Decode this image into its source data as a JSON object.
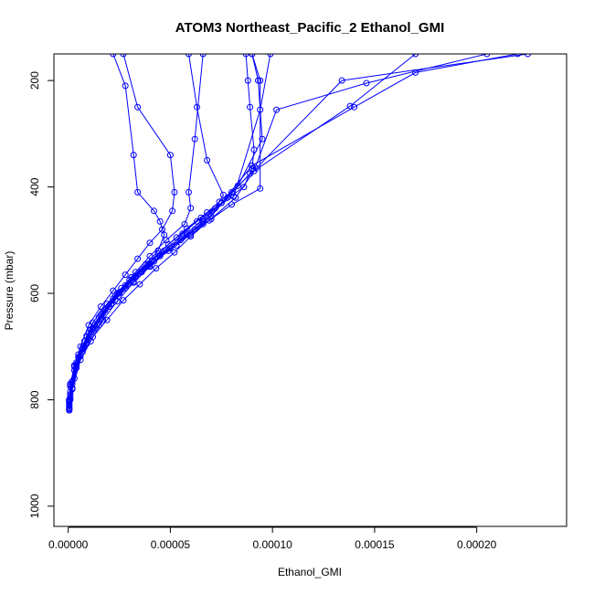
{
  "chart_data": {
    "type": "line",
    "title": "ATOM3 Northeast_Pacific_2 Ethanol_GMI",
    "xlabel": "Ethanol_GMI",
    "ylabel": "Pressure (mbar)",
    "xlim": [
      -7e-06,
      0.000244
    ],
    "ylim": [
      1038,
      150
    ],
    "y_reversed": true,
    "x_ticks": [
      "0.00000",
      "0.00005",
      "0.00010",
      "0.00015",
      "0.00020"
    ],
    "x_tick_values": [
      0,
      5e-05,
      0.0001,
      0.00015,
      0.0002
    ],
    "y_ticks": [
      "200",
      "400",
      "600",
      "800",
      "1000"
    ],
    "y_tick_values": [
      200,
      400,
      600,
      800,
      1000
    ],
    "color": "#0000ff",
    "marker": "open-circle",
    "series": [
      {
        "x": [
          5e-07,
          1e-06,
          3e-06,
          7e-06,
          1.2e-05,
          1.8e-05,
          2.5e-05,
          3.3e-05,
          4.2e-05,
          5.3e-05,
          6.2e-05,
          7e-05,
          8e-05,
          9.2e-05,
          0.000134,
          0.000225
        ],
        "y": [
          820,
          800,
          760,
          710,
          665,
          630,
          600,
          570,
          540,
          510,
          480,
          455,
          410,
          365,
          200,
          150
        ]
      },
      {
        "x": [
          5e-07,
          1e-06,
          4e-06,
          8e-06,
          1.3e-05,
          2e-05,
          2.8e-05,
          3.6e-05,
          4.5e-05,
          5.5e-05,
          6.6e-05,
          7.5e-05,
          9e-05,
          0.00014,
          0.00017,
          0.00022
        ],
        "y": [
          818,
          795,
          740,
          700,
          660,
          625,
          590,
          560,
          530,
          500,
          470,
          430,
          360,
          250,
          185,
          150
        ]
      },
      {
        "x": [
          5e-07,
          2e-06,
          5e-06,
          9e-06,
          1.5e-05,
          2.2e-05,
          3e-05,
          4e-05,
          5e-05,
          6e-05,
          7e-05,
          8.2e-05,
          9.1e-05,
          0.000102,
          0.000146,
          0.000205
        ],
        "y": [
          815,
          780,
          720,
          680,
          645,
          610,
          575,
          545,
          515,
          490,
          460,
          420,
          370,
          255,
          205,
          150
        ]
      },
      {
        "x": [
          5e-07,
          1e-06,
          3e-06,
          7e-06,
          1.1e-05,
          1.7e-05,
          2.4e-05,
          3.1e-05,
          3.9e-05,
          4.7e-05,
          5.6e-05,
          6.6e-05,
          7.8e-05,
          8.9e-05,
          0.000138,
          0.00017
        ],
        "y": [
          812,
          790,
          745,
          705,
          668,
          635,
          600,
          570,
          545,
          520,
          495,
          460,
          420,
          375,
          248,
          150
        ]
      },
      {
        "x": [
          5e-07,
          1e-06,
          4e-06,
          8e-06,
          1.2e-05,
          1.9e-05,
          2.6e-05,
          3.3e-05,
          4e-05,
          4.8e-05,
          5.7e-05,
          6e-05,
          5.9e-05,
          6.2e-05,
          6.6e-05
        ],
        "y": [
          805,
          770,
          730,
          690,
          655,
          620,
          590,
          560,
          530,
          500,
          470,
          440,
          410,
          310,
          150
        ]
      },
      {
        "x": [
          5e-07,
          2e-06,
          5e-06,
          1e-05,
          1.6e-05,
          2.3e-05,
          3.1e-05,
          3.8e-05,
          4.4e-05,
          4.7e-05,
          4.5e-05,
          4.2e-05,
          3.4e-05,
          3.2e-05,
          2.8e-05,
          2.2e-05
        ],
        "y": [
          800,
          765,
          715,
          675,
          640,
          605,
          570,
          545,
          520,
          490,
          465,
          445,
          410,
          340,
          210,
          150
        ]
      },
      {
        "x": [
          5e-07,
          1e-06,
          3e-06,
          6e-06,
          1e-05,
          1.6e-05,
          2.2e-05,
          2.8e-05,
          3.4e-05,
          4e-05,
          4.6e-05,
          5.1e-05,
          5.2e-05,
          5e-05,
          3.4e-05,
          2.7e-05
        ],
        "y": [
          802,
          775,
          735,
          700,
          660,
          625,
          595,
          565,
          535,
          505,
          480,
          445,
          410,
          340,
          250,
          150
        ]
      },
      {
        "x": [
          5e-07,
          2e-06,
          6e-06,
          1.1e-05,
          1.7e-05,
          2.4e-05,
          3.2e-05,
          4e-05,
          4.9e-05,
          5.8e-05,
          6.6e-05,
          7.2e-05,
          7.6e-05,
          6.8e-05,
          6.3e-05,
          5.9e-05
        ],
        "y": [
          810,
          780,
          725,
          690,
          650,
          615,
          580,
          550,
          520,
          490,
          465,
          440,
          415,
          350,
          250,
          150
        ]
      },
      {
        "x": [
          5e-07,
          1e-06,
          4e-06,
          9e-06,
          1.5e-05,
          2.1e-05,
          2.8e-05,
          3.6e-05,
          4.4e-05,
          5.3e-05,
          6.3e-05,
          7.5e-05,
          8.6e-05,
          9e-05,
          9.1e-05,
          8.9e-05,
          8.8e-05,
          8.7e-05
        ],
        "y": [
          808,
          785,
          735,
          695,
          660,
          620,
          585,
          555,
          525,
          495,
          465,
          430,
          400,
          365,
          330,
          250,
          200,
          150
        ]
      },
      {
        "x": [
          5e-07,
          2e-06,
          5e-06,
          1e-05,
          1.6e-05,
          2.3e-05,
          3.2e-05,
          4e-05,
          4.8e-05,
          5.6e-05,
          6.5e-05,
          7.4e-05,
          8.3e-05,
          9.5e-05,
          9.3e-05,
          9e-05
        ],
        "y": [
          803,
          770,
          720,
          685,
          648,
          612,
          578,
          548,
          518,
          488,
          458,
          428,
          398,
          310,
          200,
          150
        ]
      },
      {
        "x": [
          5e-07,
          1e-06,
          3e-06,
          7e-06,
          1.2e-05,
          1.8e-05,
          2.5e-05,
          3.3e-05,
          4.1e-05,
          4.9e-05,
          5.8e-05,
          6.8e-05,
          8.1e-05,
          9.4e-05,
          9.9e-05
        ],
        "y": [
          800,
          772,
          738,
          702,
          668,
          632,
          598,
          568,
          538,
          508,
          478,
          448,
          418,
          255,
          150
        ]
      },
      {
        "x": [
          5e-07,
          2e-06,
          6e-06,
          1.2e-05,
          1.9e-05,
          2.7e-05,
          3.5e-05,
          4.3e-05,
          5.2e-05,
          6e-05,
          6.9e-05,
          8e-05,
          9.4e-05,
          9.4e-05,
          9e-05
        ],
        "y": [
          816,
          778,
          718,
          682,
          650,
          613,
          583,
          553,
          523,
          493,
          463,
          433,
          403,
          200,
          150
        ]
      }
    ]
  }
}
